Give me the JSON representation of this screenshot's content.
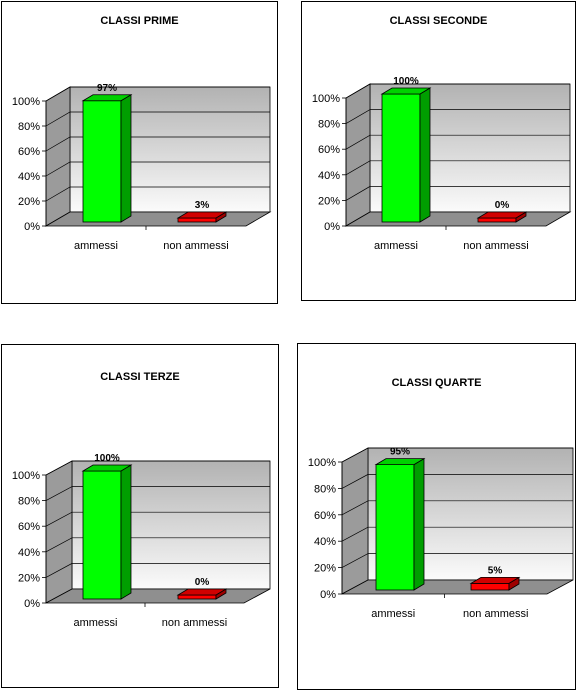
{
  "chart_data": [
    {
      "type": "bar",
      "title": "CLASSI PRIME",
      "categories": [
        "ammessi",
        "non ammessi"
      ],
      "values": [
        97,
        3
      ],
      "data_labels": [
        "97%",
        "3%"
      ],
      "y_ticks": [
        "0%",
        "20%",
        "40%",
        "60%",
        "80%",
        "100%"
      ],
      "ylim": [
        0,
        100
      ],
      "colors": [
        "#00ff00",
        "#ff0000"
      ],
      "grid": true,
      "legend": "none"
    },
    {
      "type": "bar",
      "title": "CLASSI SECONDE",
      "categories": [
        "ammessi",
        "non ammessi"
      ],
      "values": [
        100,
        0
      ],
      "data_labels": [
        "100%",
        "0%"
      ],
      "y_ticks": [
        "0%",
        "20%",
        "40%",
        "60%",
        "80%",
        "100%"
      ],
      "ylim": [
        0,
        100
      ],
      "colors": [
        "#00ff00",
        "#ff0000"
      ],
      "grid": true,
      "legend": "none"
    },
    {
      "type": "bar",
      "title": "CLASSI TERZE",
      "categories": [
        "ammessi",
        "non ammessi"
      ],
      "values": [
        100,
        0
      ],
      "data_labels": [
        "100%",
        "0%"
      ],
      "y_ticks": [
        "0%",
        "20%",
        "40%",
        "60%",
        "80%",
        "100%"
      ],
      "ylim": [
        0,
        100
      ],
      "colors": [
        "#00ff00",
        "#ff0000"
      ],
      "grid": true,
      "legend": "none"
    },
    {
      "type": "bar",
      "title": "CLASSI QUARTE",
      "categories": [
        "ammessi",
        "non ammessi"
      ],
      "values": [
        95,
        5
      ],
      "data_labels": [
        "95%",
        "5%"
      ],
      "y_ticks": [
        "0%",
        "20%",
        "40%",
        "60%",
        "80%",
        "100%"
      ],
      "ylim": [
        0,
        100
      ],
      "colors": [
        "#00ff00",
        "#ff0000"
      ],
      "grid": true,
      "legend": "none"
    }
  ]
}
